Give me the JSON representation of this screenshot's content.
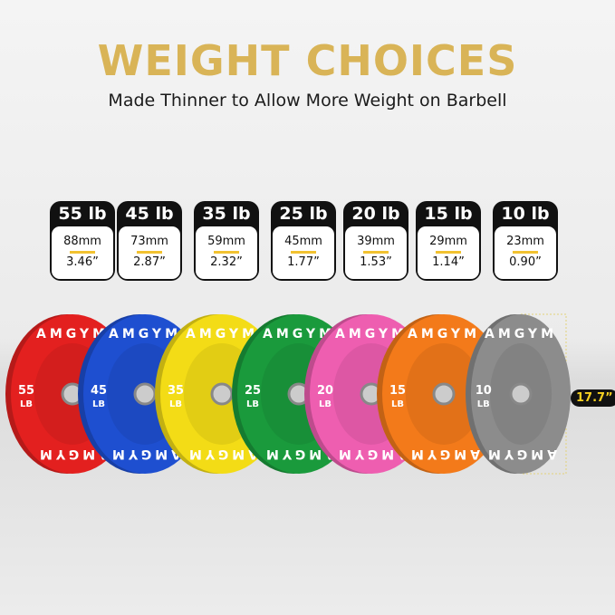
{
  "title": "WEIGHT CHOICES",
  "subtitle": "Made Thinner to Allow More Weight on Barbell",
  "plates": [
    {
      "weight": "55 lb",
      "mm": "88mm",
      "inch": "3.46”",
      "num": "55",
      "color": "#e3201f"
    },
    {
      "weight": "45 lb",
      "mm": "73mm",
      "inch": "2.87”",
      "num": "45",
      "color": "#1e4fd0"
    },
    {
      "weight": "35 lb",
      "mm": "59mm",
      "inch": "2.32”",
      "num": "35",
      "color": "#f3dc16"
    },
    {
      "weight": "25 lb",
      "mm": "45mm",
      "inch": "1.77”",
      "num": "25",
      "color": "#1a9a3c"
    },
    {
      "weight": "20 lb",
      "mm": "39mm",
      "inch": "1.53”",
      "num": "20",
      "color": "#ee5eb0"
    },
    {
      "weight": "15 lb",
      "mm": "29mm",
      "inch": "1.14”",
      "num": "15",
      "color": "#f37a1a"
    },
    {
      "weight": "10 lb",
      "mm": "23mm",
      "inch": "0.90”",
      "num": "10",
      "color": "#8c8c8c"
    }
  ],
  "brand": "AMGYM",
  "unit": "LB",
  "diameter": "17.7”"
}
